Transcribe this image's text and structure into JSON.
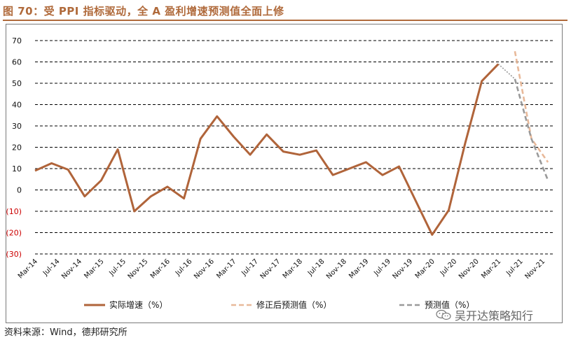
{
  "title": "图 70：受 PPI 指标驱动，全 A 盈利增速预测值全面上修",
  "source": "资料来源：Wind，德邦研究所",
  "watermark": "吴开达策略知行",
  "chart_data": {
    "type": "line",
    "ylim": [
      -30,
      70
    ],
    "yticks": [
      70,
      60,
      50,
      40,
      30,
      20,
      10,
      0,
      -10,
      -20,
      -30
    ],
    "ytick_labels": [
      "70",
      "60",
      "50",
      "40",
      "30",
      "20",
      "10",
      "0",
      "(10)",
      "(20)",
      "(30)"
    ],
    "negative_tick_color": "#cc0000",
    "grid": "horizontal dashed",
    "x_labels": [
      "Mar-14",
      "Jul-14",
      "Nov-14",
      "Mar-15",
      "Jul-15",
      "Nov-15",
      "Mar-16",
      "Jul-16",
      "Nov-16",
      "Mar-17",
      "Jul-17",
      "Nov-17",
      "Mar-18",
      "Jul-18",
      "Nov-18",
      "Mar-19",
      "Jul-19",
      "Nov-19",
      "Mar-20",
      "Jul-20",
      "Nov-20",
      "Mar-21",
      "Jul-21",
      "Nov-21"
    ],
    "series": [
      {
        "name": "实际增速（%）",
        "color": "#b0643a",
        "style": "solid",
        "points": [
          [
            "Mar-14",
            9
          ],
          [
            "Jun-14",
            12.5
          ],
          [
            "Sep-14",
            9.5
          ],
          [
            "Dec-14",
            -3
          ],
          [
            "Mar-15",
            4.5
          ],
          [
            "Jun-15",
            19
          ],
          [
            "Sep-15",
            -10
          ],
          [
            "Dec-15",
            -3
          ],
          [
            "Mar-16",
            1.5
          ],
          [
            "Jun-16",
            -4
          ],
          [
            "Sep-16",
            24
          ],
          [
            "Dec-16",
            34.5
          ],
          [
            "Mar-17",
            25
          ],
          [
            "Jun-17",
            16.5
          ],
          [
            "Sep-17",
            26
          ],
          [
            "Dec-17",
            18
          ],
          [
            "Mar-18",
            16.5
          ],
          [
            "Jun-18",
            18.5
          ],
          [
            "Sep-18",
            7
          ],
          [
            "Dec-18",
            10
          ],
          [
            "Mar-19",
            13
          ],
          [
            "Jun-19",
            7
          ],
          [
            "Sep-19",
            11
          ],
          [
            "Dec-19",
            -5
          ],
          [
            "Mar-20",
            -21
          ],
          [
            "Jun-20",
            -9.5
          ],
          [
            "Sep-20",
            22
          ],
          [
            "Dec-20",
            51
          ],
          [
            "Mar-21",
            59
          ]
        ]
      },
      {
        "name": "修正后预测值（%）",
        "color": "#e8b99a",
        "style": "dashed",
        "points": [
          [
            "Jun-21",
            65
          ],
          [
            "Sep-21",
            24
          ],
          [
            "Dec-21",
            13
          ]
        ]
      },
      {
        "name": "预测值（%）",
        "color": "#9a9a9a",
        "style": "dashed",
        "points": [
          [
            "Jun-21",
            52
          ],
          [
            "Sep-21",
            24
          ],
          [
            "Dec-21",
            4.5
          ]
        ]
      }
    ],
    "connectors": [
      {
        "color": "#9a9a9a",
        "style": "dotted",
        "points": [
          [
            "Mar-21",
            59
          ],
          [
            "Jun-21",
            52
          ]
        ]
      }
    ]
  }
}
